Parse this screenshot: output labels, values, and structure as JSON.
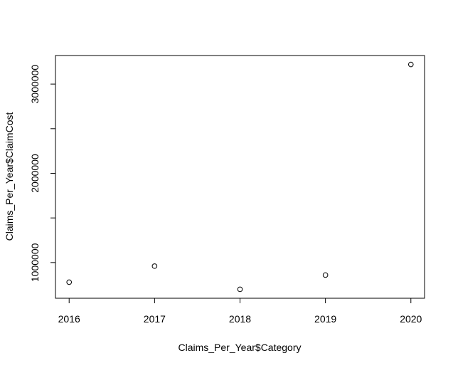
{
  "chart_data": {
    "type": "scatter",
    "title": "",
    "xlabel": "Claims_Per_Year$Category",
    "ylabel": "Claims_Per_Year$ClaimCost",
    "x": [
      2016,
      2017,
      2018,
      2019,
      2020
    ],
    "y": [
      780000,
      960000,
      700000,
      860000,
      3220000
    ],
    "xlim": [
      2015.84,
      2020.16
    ],
    "ylim": [
      600000,
      3320000
    ],
    "xticks": [
      2016,
      2017,
      2018,
      2019,
      2020
    ],
    "xtick_labels": [
      "2016",
      "2017",
      "2018",
      "2019",
      "2020"
    ],
    "yticks": [
      1000000,
      1500000,
      2000000,
      2500000,
      3000000
    ],
    "ytick_labels": [
      "1000000",
      "",
      "2000000",
      "",
      "3000000"
    ],
    "grid": false,
    "legend": "none",
    "marker": "open-circle",
    "colors": {
      "point": "#000000",
      "axis": "#000000",
      "background": "#ffffff"
    }
  }
}
